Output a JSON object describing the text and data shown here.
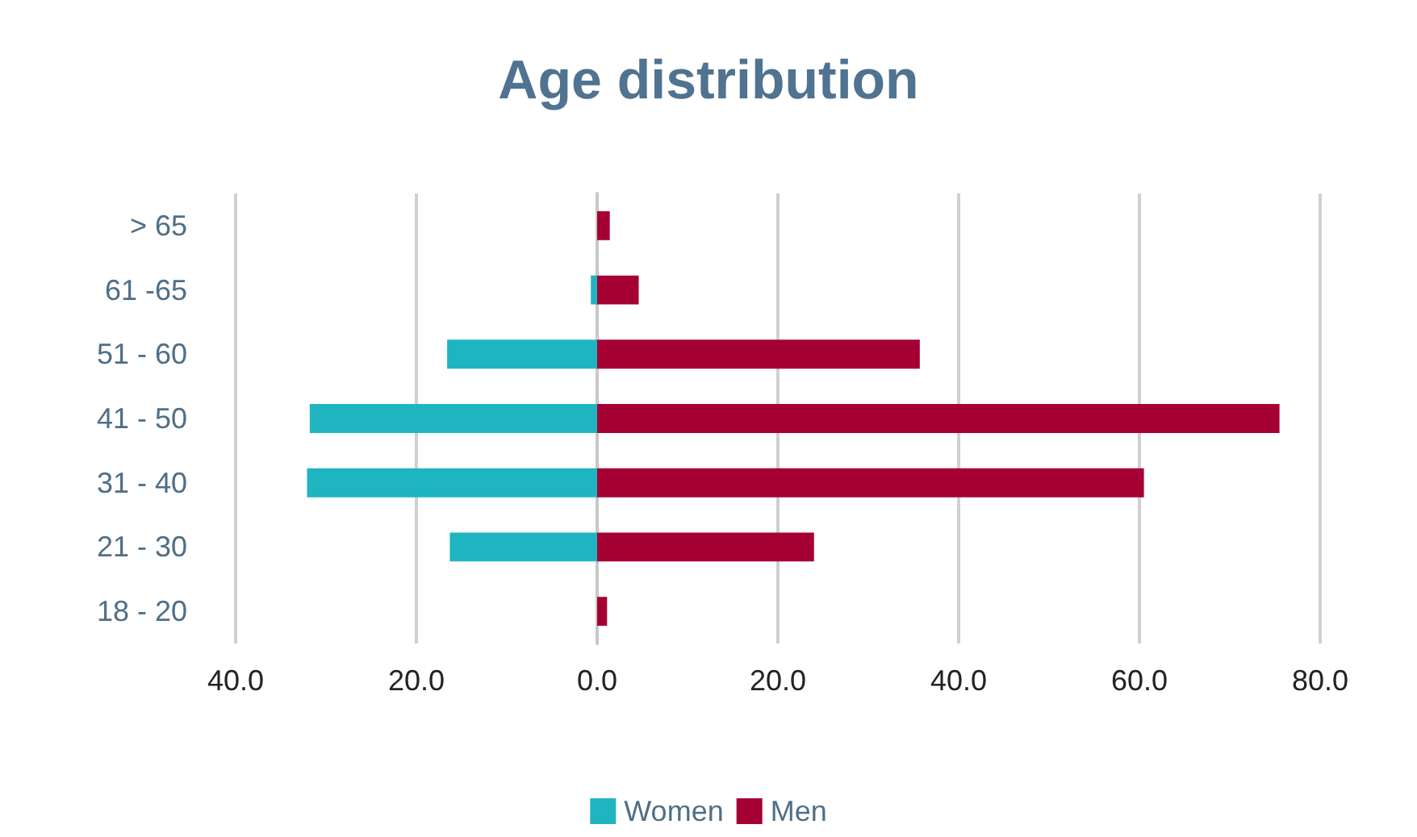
{
  "chart_data": {
    "type": "bar",
    "orientation": "horizontal",
    "stacked": true,
    "title": "Age distribution",
    "categories": [
      "> 65",
      "61 -65",
      "51 - 60",
      "41 - 50",
      "31 - 40",
      "21 - 30",
      "18 - 20"
    ],
    "series": [
      {
        "name": "Women",
        "color": "#1fb5c0",
        "values": [
          0,
          -0.7,
          -16.6,
          -31.8,
          -32.1,
          -16.3,
          0
        ]
      },
      {
        "name": "Men",
        "color": "#a50034",
        "values": [
          1.4,
          4.6,
          35.7,
          75.5,
          60.5,
          24.0,
          1.1
        ]
      }
    ],
    "xlim": [
      -40,
      80
    ],
    "xticks": [
      {
        "value": -40,
        "label": "40.0"
      },
      {
        "value": -20,
        "label": "20.0"
      },
      {
        "value": 0,
        "label": "0.0"
      },
      {
        "value": 20,
        "label": "20.0"
      },
      {
        "value": 40,
        "label": "40.0"
      },
      {
        "value": 60,
        "label": "60.0"
      },
      {
        "value": 80,
        "label": "80.0"
      }
    ],
    "grid": "x",
    "legend": "bottom"
  }
}
